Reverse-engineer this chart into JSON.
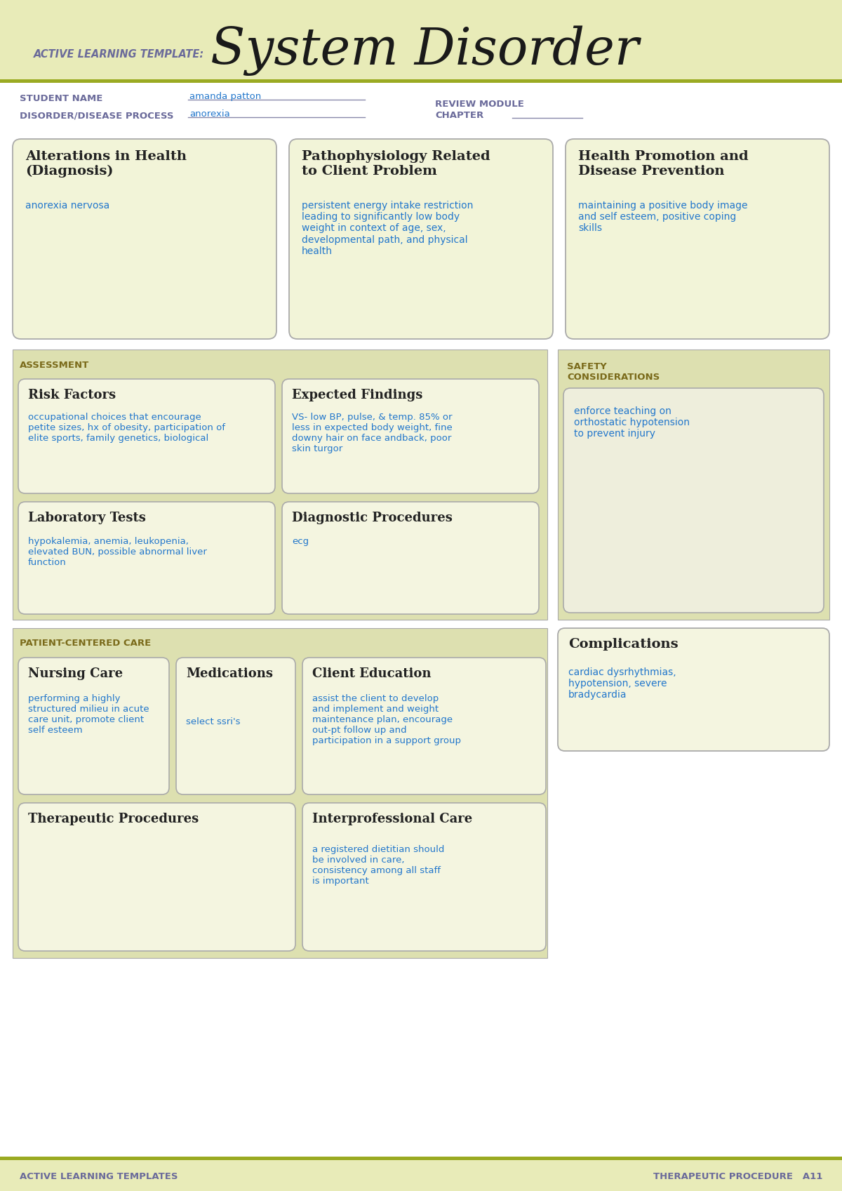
{
  "bg_header": "#e8ebb8",
  "bg_white": "#ffffff",
  "bg_section": "#dde0b0",
  "bg_box_light": "#eef0d0",
  "bg_inner_box": "#f4f5e0",
  "bg_inner_box2": "#eeeedc",
  "border_color": "#aaaaaa",
  "text_purple": "#6a6a9a",
  "text_blue": "#2277cc",
  "text_black": "#222222",
  "text_olive": "#7a6a1a",
  "olive_line": "#9aaa22",
  "header_label": "ACTIVE LEARNING TEMPLATE:",
  "header_title": "System Disorder",
  "student_name_label": "STUDENT NAME",
  "student_name_value": "amanda patton",
  "disorder_label": "DISORDER/DISEASE PROCESS",
  "disorder_value": "anorexia",
  "review_module_label": "REVIEW MODULE",
  "chapter_label": "CHAPTER",
  "box1_title": "Alterations in Health\n(Diagnosis)",
  "box1_content": "anorexia nervosa",
  "box2_title": "Pathophysiology Related\nto Client Problem",
  "box2_content": "persistent energy intake restriction\nleading to significantly low body\nweight in context of age, sex,\ndevelopmental path, and physical\nhealth",
  "box3_title": "Health Promotion and\nDisease Prevention",
  "box3_content": "maintaining a positive body image\nand self esteem, positive coping\nskills",
  "assessment_label": "ASSESSMENT",
  "safety_label": "SAFETY\nCONSIDERATIONS",
  "risk_title": "Risk Factors",
  "risk_content": "occupational choices that encourage\npetite sizes, hx of obesity, participation of\nelite sports, family genetics, biological",
  "expected_title": "Expected Findings",
  "expected_content": "VS- low BP, pulse, & temp. 85% or\nless in expected body weight, fine\ndowny hair on face andback, poor\nskin turgor",
  "safety_content": "enforce teaching on\northostatic hypotension\nto prevent injury",
  "lab_title": "Laboratory Tests",
  "lab_content": "hypokalemia, anemia, leukopenia,\nelevated BUN, possible abnormal liver\nfunction",
  "diag_title": "Diagnostic Procedures",
  "diag_content": "ecg",
  "patient_care_label": "PATIENT-CENTERED CARE",
  "complications_title": "Complications",
  "complications_content": "cardiac dysrhythmias,\nhypotension, severe\nbradycardia",
  "nursing_title": "Nursing Care",
  "nursing_content": "performing a highly\nstructured milieu in acute\ncare unit, promote client\nself esteem",
  "medications_title": "Medications",
  "medications_content": "select ssri's",
  "client_ed_title": "Client Education",
  "client_ed_content": "assist the client to develop\nand implement and weight\nmaintenance plan, encourage\nout-pt follow up and\nparticipation in a support group",
  "therapeutic_title": "Therapeutic Procedures",
  "therapeutic_content": "",
  "interpro_title": "Interprofessional Care",
  "interpro_content": "a registered dietitian should\nbe involved in care,\nconsistency among all staff\nis important",
  "footer_left": "ACTIVE LEARNING TEMPLATES",
  "footer_right": "THERAPEUTIC PROCEDURE   A11"
}
